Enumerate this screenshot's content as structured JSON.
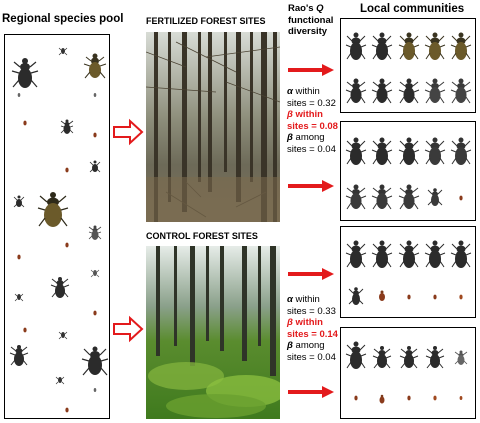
{
  "headings": {
    "regional_pool": "Regional species pool",
    "fertilized_sites": "FERTILIZED FOREST SITES",
    "control_sites": "CONTROL FOREST SITES",
    "raos_line1": "Rao's",
    "raos_q": "Q",
    "raos_line2": "functional",
    "raos_line3": "diversity",
    "local_communities": "Local communities"
  },
  "fertilized_stats": {
    "alpha_symbol": "α",
    "alpha_text": "within",
    "alpha_value": "sites = 0.32",
    "beta_within_symbol": "β",
    "beta_within_text": "within",
    "beta_within_value": "sites = 0.08",
    "beta_among_symbol": "β",
    "beta_among_text": "among",
    "beta_among_value": "sites = 0.04"
  },
  "control_stats": {
    "alpha_symbol": "α",
    "alpha_text": "within",
    "alpha_value": "sites = 0.33",
    "beta_within_symbol": "β",
    "beta_within_text": "within",
    "beta_within_value": "sites = 0.14",
    "beta_among_symbol": "β",
    "beta_among_text": "among",
    "beta_among_value": "sites = 0.04"
  },
  "colors": {
    "arrow_red": "#e31a1c",
    "beetle_dark": "#2b2b2b",
    "beetle_brown": "#6b5a2a",
    "beetle_red": "#8a3b1c",
    "forest_fertilized": "#6d6a58",
    "forest_control": "#5a8c2e"
  }
}
